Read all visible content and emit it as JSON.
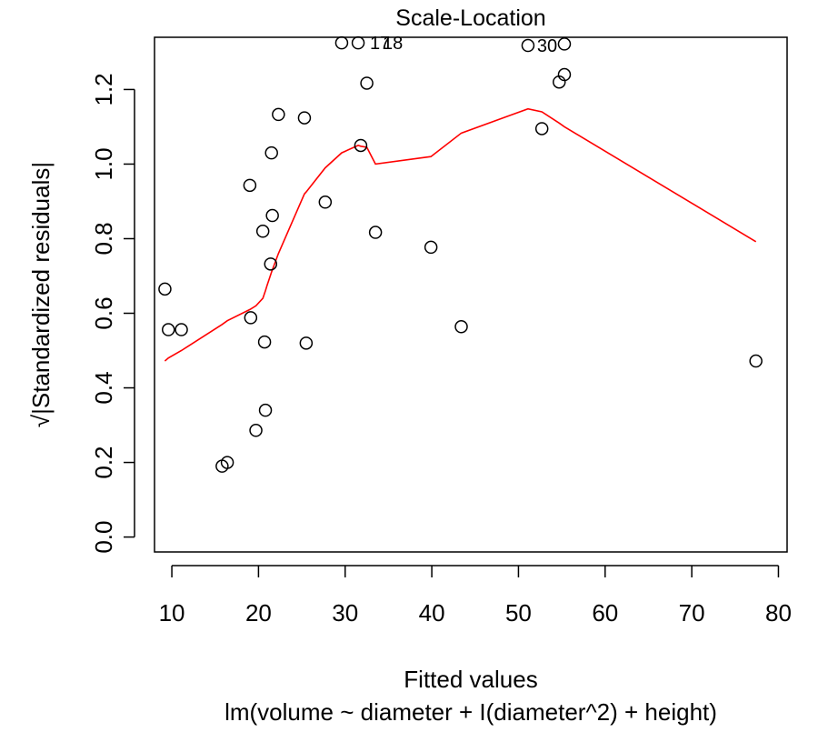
{
  "chart_data": {
    "type": "scatter",
    "title": "Scale-Location",
    "xlabel": "Fitted values",
    "ylabel": "√|Standardized residuals|",
    "sublabel": "lm(volume ~ diameter + I(diameter^2) + height)",
    "xlim": [
      8,
      81
    ],
    "ylim": [
      -0.04,
      1.34
    ],
    "x_ticks": [
      10,
      20,
      30,
      40,
      50,
      60,
      70,
      80
    ],
    "y_ticks": [
      0.0,
      0.2,
      0.4,
      0.6,
      0.8,
      1.0,
      1.2
    ],
    "y_tick_labels": [
      "0.0",
      "0.2",
      "0.4",
      "0.6",
      "0.8",
      "1.0",
      "1.2"
    ],
    "grid": false,
    "points": [
      {
        "x": 9.2,
        "y": 0.665
      },
      {
        "x": 9.6,
        "y": 0.556
      },
      {
        "x": 11.1,
        "y": 0.556
      },
      {
        "x": 15.8,
        "y": 0.19
      },
      {
        "x": 16.4,
        "y": 0.2
      },
      {
        "x": 19.0,
        "y": 0.943
      },
      {
        "x": 19.1,
        "y": 0.588
      },
      {
        "x": 19.7,
        "y": 0.286
      },
      {
        "x": 20.5,
        "y": 0.82
      },
      {
        "x": 20.7,
        "y": 0.523
      },
      {
        "x": 20.8,
        "y": 0.34
      },
      {
        "x": 21.4,
        "y": 0.732
      },
      {
        "x": 21.5,
        "y": 1.03
      },
      {
        "x": 21.6,
        "y": 0.862
      },
      {
        "x": 22.3,
        "y": 1.133
      },
      {
        "x": 25.3,
        "y": 1.124
      },
      {
        "x": 25.5,
        "y": 0.52
      },
      {
        "x": 27.7,
        "y": 0.898
      },
      {
        "x": 29.6,
        "y": 1.325
      },
      {
        "x": 31.5,
        "y": 1.325
      },
      {
        "x": 31.8,
        "y": 1.05
      },
      {
        "x": 32.5,
        "y": 1.217
      },
      {
        "x": 33.5,
        "y": 0.817
      },
      {
        "x": 39.9,
        "y": 0.777
      },
      {
        "x": 43.4,
        "y": 0.564
      },
      {
        "x": 51.1,
        "y": 1.318
      },
      {
        "x": 52.7,
        "y": 1.095
      },
      {
        "x": 54.7,
        "y": 1.22
      },
      {
        "x": 55.3,
        "y": 1.24
      },
      {
        "x": 55.3,
        "y": 1.322
      },
      {
        "x": 77.4,
        "y": 0.472
      }
    ],
    "point_labels": [
      {
        "text": "17",
        "x": 31.5,
        "y": 1.325
      },
      {
        "text": "18",
        "x": 31.5,
        "y": 1.325
      },
      {
        "text": "30",
        "x": 51.1,
        "y": 1.318
      }
    ],
    "smoother": {
      "color": "#ff0000",
      "points": [
        [
          9.2,
          0.472
        ],
        [
          9.6,
          0.48
        ],
        [
          11.1,
          0.5
        ],
        [
          15.8,
          0.57
        ],
        [
          16.4,
          0.58
        ],
        [
          19.0,
          0.61
        ],
        [
          19.7,
          0.62
        ],
        [
          20.5,
          0.64
        ],
        [
          20.8,
          0.66
        ],
        [
          21.0,
          0.675
        ],
        [
          21.5,
          0.71
        ],
        [
          22.3,
          0.76
        ],
        [
          25.3,
          0.92
        ],
        [
          25.5,
          0.925
        ],
        [
          27.7,
          0.99
        ],
        [
          29.6,
          1.03
        ],
        [
          31.5,
          1.05
        ],
        [
          31.8,
          1.048
        ],
        [
          32.5,
          1.045
        ],
        [
          33.5,
          1.0
        ],
        [
          39.9,
          1.02
        ],
        [
          43.4,
          1.083
        ],
        [
          51.1,
          1.148
        ],
        [
          52.7,
          1.14
        ],
        [
          54.7,
          1.11
        ],
        [
          55.3,
          1.1
        ],
        [
          77.4,
          0.792
        ]
      ]
    },
    "point_style": {
      "color": "#000000",
      "fill": "none"
    }
  }
}
